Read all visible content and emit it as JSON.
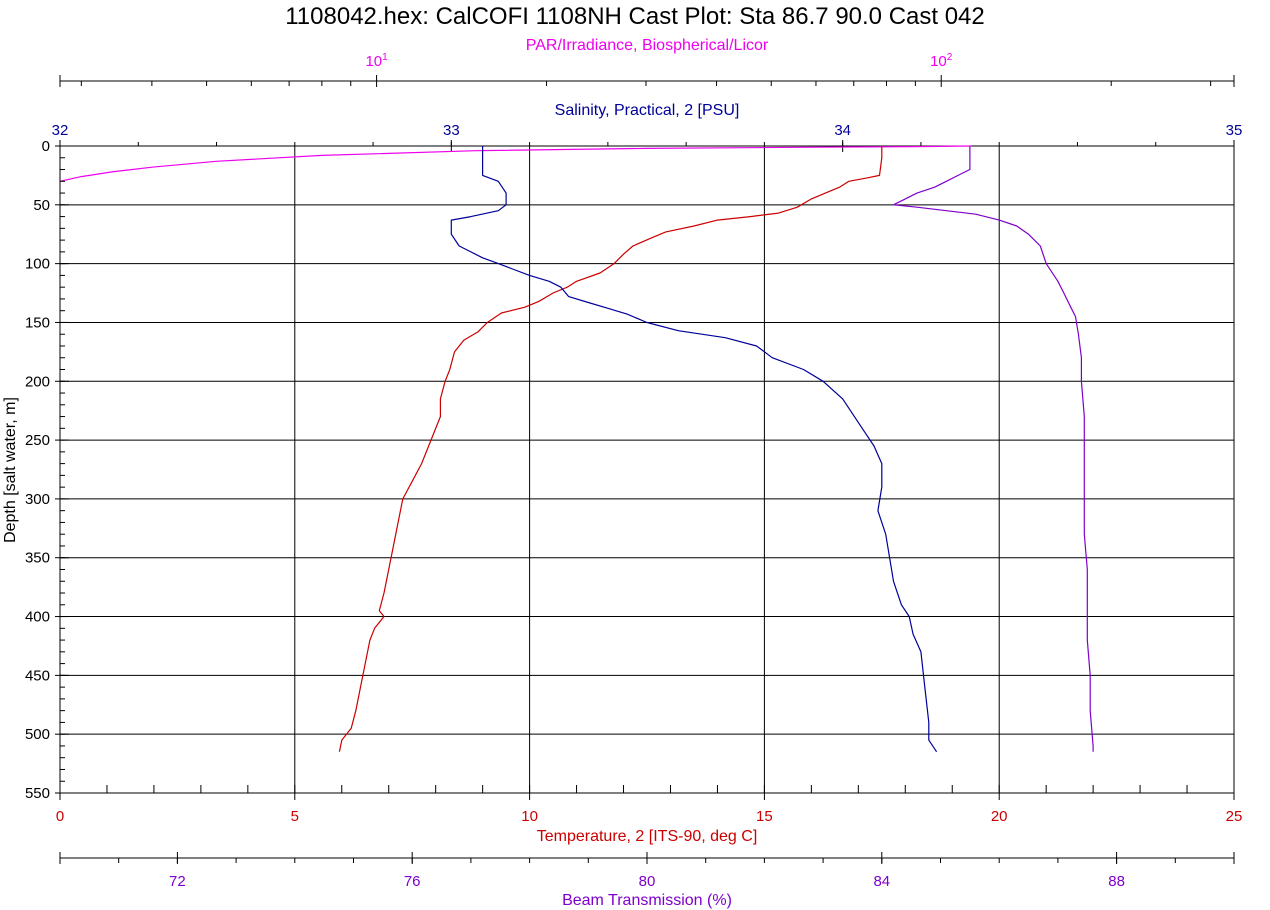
{
  "title": "1108042.hex: CalCOFI 1108NH Cast Plot: Sta 86.7 90.0  Cast 042",
  "chart_data": {
    "type": "line",
    "title": "1108042.hex: CalCOFI 1108NH Cast Plot: Sta 86.7 90.0  Cast 042",
    "grid": true,
    "y_axis": {
      "label": "Depth [salt water, m]",
      "range": [
        0,
        550
      ],
      "inverted": true,
      "major_ticks": [
        0,
        50,
        100,
        150,
        200,
        250,
        300,
        350,
        400,
        450,
        500,
        550
      ],
      "minor_step": 10
    },
    "axes": {
      "par": {
        "label": "PAR/Irradiance, Biospherical/Licor",
        "scale": "log",
        "range": [
          2.75,
          330
        ],
        "tick_labels": [
          {
            "base": "10",
            "exp": "1",
            "value": 10
          },
          {
            "base": "10",
            "exp": "2",
            "value": 100
          }
        ],
        "color": "#ee00ee"
      },
      "salinity": {
        "label": "Salinity, Practical, 2 [PSU]",
        "range": [
          32,
          35
        ],
        "ticks": [
          32,
          33,
          34,
          35
        ],
        "color": "#000099"
      },
      "temperature": {
        "label": "Temperature, 2 [ITS-90, deg C]",
        "range": [
          0,
          25
        ],
        "ticks": [
          0,
          5,
          10,
          15,
          20,
          25
        ],
        "minor_step": 1,
        "color": "#cc0000"
      },
      "transmission": {
        "label": "Beam Transmission (%)",
        "range": [
          70,
          90
        ],
        "ticks": [
          72,
          76,
          80,
          84,
          88
        ],
        "minor_step": 1,
        "color": "#7f00cc"
      }
    },
    "series": [
      {
        "key": "par",
        "axis": "par",
        "color": "#ee00ee",
        "points": [
          [
            113,
            0
          ],
          [
            90,
            0.5
          ],
          [
            60,
            1
          ],
          [
            30,
            2
          ],
          [
            15,
            4
          ],
          [
            8,
            8
          ],
          [
            5.2,
            13
          ],
          [
            4,
            18
          ],
          [
            3.4,
            22
          ],
          [
            3,
            26
          ],
          [
            2.75,
            30
          ]
        ]
      },
      {
        "key": "temperature",
        "axis": "temperature",
        "color": "#cc0000",
        "points": [
          [
            17.5,
            0
          ],
          [
            17.5,
            10
          ],
          [
            17.45,
            25
          ],
          [
            17.2,
            27
          ],
          [
            16.8,
            30
          ],
          [
            16.6,
            35
          ],
          [
            16.3,
            40
          ],
          [
            16.0,
            45
          ],
          [
            15.7,
            52
          ],
          [
            15.3,
            57
          ],
          [
            14.7,
            60
          ],
          [
            14.0,
            63
          ],
          [
            13.5,
            68
          ],
          [
            12.9,
            73
          ],
          [
            12.6,
            78
          ],
          [
            12.2,
            85
          ],
          [
            12.0,
            92
          ],
          [
            11.8,
            100
          ],
          [
            11.5,
            108
          ],
          [
            11.0,
            115
          ],
          [
            10.8,
            120
          ],
          [
            10.5,
            125
          ],
          [
            10.2,
            132
          ],
          [
            9.9,
            137
          ],
          [
            9.4,
            142
          ],
          [
            9.1,
            150
          ],
          [
            8.9,
            158
          ],
          [
            8.6,
            165
          ],
          [
            8.4,
            175
          ],
          [
            8.3,
            190
          ],
          [
            8.2,
            200
          ],
          [
            8.1,
            215
          ],
          [
            8.1,
            230
          ],
          [
            7.9,
            250
          ],
          [
            7.7,
            270
          ],
          [
            7.5,
            285
          ],
          [
            7.3,
            300
          ],
          [
            7.2,
            320
          ],
          [
            7.1,
            340
          ],
          [
            7.0,
            360
          ],
          [
            6.9,
            380
          ],
          [
            6.8,
            395
          ],
          [
            6.9,
            400
          ],
          [
            6.7,
            410
          ],
          [
            6.6,
            420
          ],
          [
            6.5,
            440
          ],
          [
            6.4,
            460
          ],
          [
            6.3,
            480
          ],
          [
            6.2,
            495
          ],
          [
            6.0,
            505
          ],
          [
            5.95,
            515
          ]
        ]
      },
      {
        "key": "salinity",
        "axis": "salinity",
        "color": "#000099",
        "points": [
          [
            33.08,
            0
          ],
          [
            33.08,
            10
          ],
          [
            33.08,
            25
          ],
          [
            33.12,
            30
          ],
          [
            33.14,
            40
          ],
          [
            33.14,
            50
          ],
          [
            33.12,
            55
          ],
          [
            33.05,
            60
          ],
          [
            33.0,
            63
          ],
          [
            33.0,
            75
          ],
          [
            33.02,
            85
          ],
          [
            33.05,
            90
          ],
          [
            33.08,
            95
          ],
          [
            33.12,
            100
          ],
          [
            33.16,
            105
          ],
          [
            33.2,
            110
          ],
          [
            33.25,
            115
          ],
          [
            33.28,
            120
          ],
          [
            33.3,
            128
          ],
          [
            33.35,
            133
          ],
          [
            33.4,
            138
          ],
          [
            33.45,
            143
          ],
          [
            33.5,
            150
          ],
          [
            33.58,
            157
          ],
          [
            33.7,
            163
          ],
          [
            33.78,
            170
          ],
          [
            33.82,
            180
          ],
          [
            33.9,
            190
          ],
          [
            33.95,
            200
          ],
          [
            34.0,
            215
          ],
          [
            34.03,
            230
          ],
          [
            34.06,
            245
          ],
          [
            34.08,
            255
          ],
          [
            34.1,
            270
          ],
          [
            34.1,
            290
          ],
          [
            34.09,
            310
          ],
          [
            34.11,
            330
          ],
          [
            34.12,
            350
          ],
          [
            34.13,
            370
          ],
          [
            34.15,
            390
          ],
          [
            34.17,
            400
          ],
          [
            34.18,
            415
          ],
          [
            34.2,
            430
          ],
          [
            34.21,
            460
          ],
          [
            34.22,
            490
          ],
          [
            34.22,
            505
          ],
          [
            34.24,
            515
          ]
        ]
      },
      {
        "key": "transmission",
        "axis": "transmission",
        "color": "#7f00cc",
        "points": [
          [
            85.5,
            0
          ],
          [
            85.5,
            12
          ],
          [
            85.5,
            20
          ],
          [
            85.3,
            25
          ],
          [
            85.1,
            30
          ],
          [
            84.9,
            35
          ],
          [
            84.6,
            40
          ],
          [
            84.4,
            45
          ],
          [
            84.2,
            50
          ],
          [
            84.6,
            52
          ],
          [
            85.1,
            55
          ],
          [
            85.6,
            58
          ],
          [
            86.0,
            63
          ],
          [
            86.3,
            68
          ],
          [
            86.5,
            75
          ],
          [
            86.7,
            85
          ],
          [
            86.8,
            100
          ],
          [
            87.0,
            115
          ],
          [
            87.1,
            125
          ],
          [
            87.2,
            135
          ],
          [
            87.3,
            145
          ],
          [
            87.35,
            160
          ],
          [
            87.4,
            180
          ],
          [
            87.4,
            200
          ],
          [
            87.45,
            230
          ],
          [
            87.45,
            270
          ],
          [
            87.45,
            300
          ],
          [
            87.45,
            330
          ],
          [
            87.5,
            360
          ],
          [
            87.5,
            390
          ],
          [
            87.5,
            420
          ],
          [
            87.55,
            450
          ],
          [
            87.55,
            480
          ],
          [
            87.6,
            510
          ],
          [
            87.6,
            515
          ]
        ]
      }
    ]
  }
}
